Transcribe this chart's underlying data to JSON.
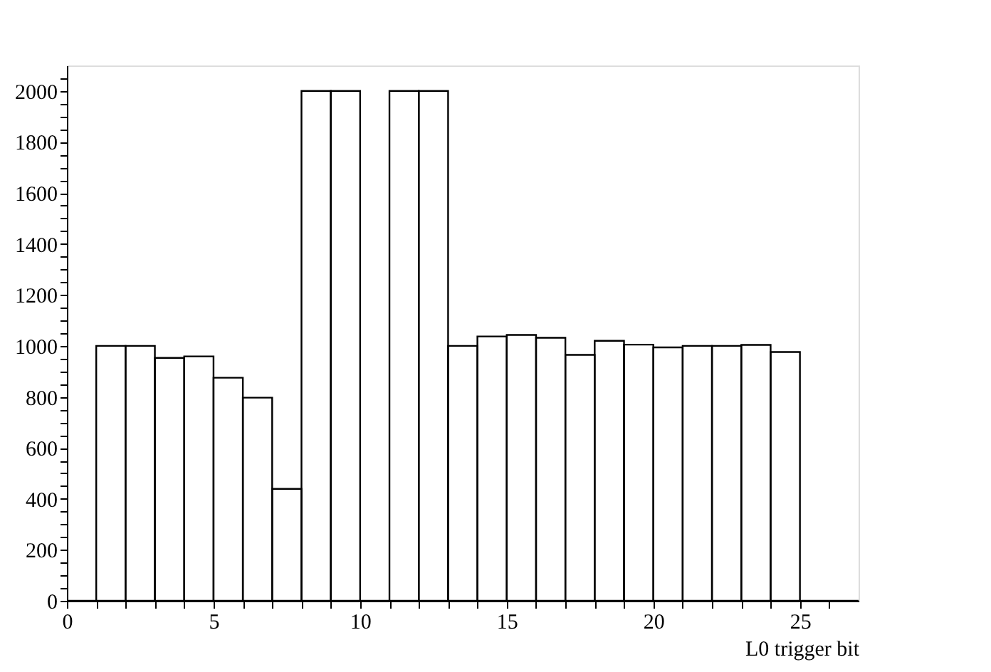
{
  "chart_data": {
    "type": "histogram",
    "xlabel": "L0 trigger bit",
    "bins": [
      0,
      1,
      2,
      3,
      4,
      5,
      6,
      7,
      8,
      9,
      10,
      11,
      12,
      13,
      14,
      15,
      16,
      17,
      18,
      19,
      20,
      21,
      22,
      23,
      24,
      25,
      26,
      27
    ],
    "values": [
      0,
      1000,
      1000,
      953,
      959,
      875,
      797,
      439,
      2000,
      2000,
      0,
      2000,
      2000,
      1000,
      1037,
      1043,
      1032,
      965,
      1020,
      1005,
      994,
      1000,
      1000,
      1004,
      976,
      0,
      0
    ],
    "color": "#000000",
    "xlim": [
      0,
      27
    ],
    "xticks": [
      0,
      {
        "value": 1,
        "label": null
      },
      {
        "value": 2,
        "label": null
      },
      {
        "value": 3,
        "label": null
      },
      {
        "value": 4,
        "label": null
      },
      5,
      {
        "value": 6,
        "label": null
      },
      {
        "value": 7,
        "label": null
      },
      {
        "value": 8,
        "label": null
      },
      {
        "value": 9,
        "label": null
      },
      10,
      {
        "value": 11,
        "label": null
      },
      {
        "value": 12,
        "label": null
      },
      {
        "value": 13,
        "label": null
      },
      {
        "value": 14,
        "label": null
      },
      15,
      {
        "value": 16,
        "label": null
      },
      {
        "value": 17,
        "label": null
      },
      {
        "value": 18,
        "label": null
      },
      {
        "value": 19,
        "label": null
      },
      20,
      {
        "value": 21,
        "label": null
      },
      {
        "value": 22,
        "label": null
      },
      {
        "value": 23,
        "label": null
      },
      {
        "value": 24,
        "label": null
      },
      25,
      {
        "value": 26,
        "label": null
      }
    ],
    "ylim": [
      0,
      2100
    ],
    "yticks": [
      0,
      {
        "value": 50,
        "label": null
      },
      {
        "value": 100,
        "label": null
      },
      {
        "value": 150,
        "label": null
      },
      200,
      {
        "value": 250,
        "label": null
      },
      {
        "value": 300,
        "label": null
      },
      {
        "value": 350,
        "label": null
      },
      400,
      {
        "value": 450,
        "label": null
      },
      {
        "value": 500,
        "label": null
      },
      {
        "value": 550,
        "label": null
      },
      600,
      {
        "value": 650,
        "label": null
      },
      {
        "value": 700,
        "label": null
      },
      {
        "value": 750,
        "label": null
      },
      800,
      {
        "value": 850,
        "label": null
      },
      {
        "value": 900,
        "label": null
      },
      {
        "value": 950,
        "label": null
      },
      1000,
      {
        "value": 1050,
        "label": null
      },
      {
        "value": 1100,
        "label": null
      },
      {
        "value": 1150,
        "label": null
      },
      1200,
      {
        "value": 1250,
        "label": null
      },
      {
        "value": 1300,
        "label": null
      },
      {
        "value": 1350,
        "label": null
      },
      1400,
      {
        "value": 1450,
        "label": null
      },
      {
        "value": 1500,
        "label": null
      },
      {
        "value": 1550,
        "label": null
      },
      1600,
      {
        "value": 1650,
        "label": null
      },
      {
        "value": 1700,
        "label": null
      },
      {
        "value": 1750,
        "label": null
      },
      1800,
      {
        "value": 1850,
        "label": null
      },
      {
        "value": 1900,
        "label": null
      },
      {
        "value": 1950,
        "label": null
      },
      2000,
      {
        "value": 2050,
        "label": null
      }
    ],
    "grid": false
  }
}
